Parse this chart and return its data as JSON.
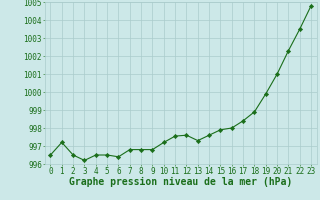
{
  "x": [
    0,
    1,
    2,
    3,
    4,
    5,
    6,
    7,
    8,
    9,
    10,
    11,
    12,
    13,
    14,
    15,
    16,
    17,
    18,
    19,
    20,
    21,
    22,
    23
  ],
  "y": [
    996.5,
    997.2,
    996.5,
    996.2,
    996.5,
    996.5,
    996.4,
    996.8,
    996.8,
    996.8,
    997.2,
    997.55,
    997.6,
    997.3,
    997.6,
    997.9,
    998.0,
    998.4,
    998.9,
    999.9,
    1001.0,
    1002.3,
    1003.5,
    1004.8
  ],
  "line_color": "#1a6e1a",
  "marker_color": "#1a6e1a",
  "bg_color": "#cce8e8",
  "grid_color": "#aacccc",
  "xlabel": "Graphe pression niveau de la mer (hPa)",
  "ylim": [
    996,
    1005
  ],
  "yticks": [
    996,
    997,
    998,
    999,
    1000,
    1001,
    1002,
    1003,
    1004,
    1005
  ],
  "xlim": [
    -0.5,
    23.5
  ],
  "xticks": [
    0,
    1,
    2,
    3,
    4,
    5,
    6,
    7,
    8,
    9,
    10,
    11,
    12,
    13,
    14,
    15,
    16,
    17,
    18,
    19,
    20,
    21,
    22,
    23
  ],
  "xlabel_fontsize": 7.0,
  "tick_fontsize": 5.5,
  "tick_color": "#1a6e1a",
  "xlabel_color": "#1a6e1a",
  "xlabel_fontweight": "bold"
}
